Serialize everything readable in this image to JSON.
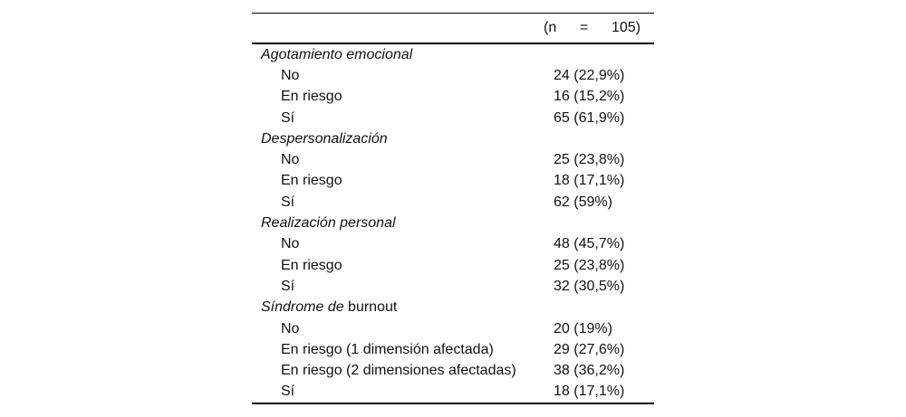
{
  "page": {
    "background_color": "#ffffff",
    "text_color": "#121212",
    "rule_color": "#000000"
  },
  "table": {
    "header": {
      "n_open": "(n",
      "n_equals": "=",
      "n_close": "105)"
    },
    "sections": [
      {
        "title_italic": "Agotamiento emocional",
        "title_regular": "",
        "rows": [
          {
            "label": "No",
            "value": "24 (22,9%)"
          },
          {
            "label": "En riesgo",
            "value": "16 (15,2%)"
          },
          {
            "label": "Sí",
            "value": "65 (61,9%)"
          }
        ]
      },
      {
        "title_italic": "Despersonalización",
        "title_regular": "",
        "rows": [
          {
            "label": "No",
            "value": "25 (23,8%)"
          },
          {
            "label": "En riesgo",
            "value": "18 (17,1%)"
          },
          {
            "label": "Sí",
            "value": "62 (59%)"
          }
        ]
      },
      {
        "title_italic": "Realización personal",
        "title_regular": "",
        "rows": [
          {
            "label": "No",
            "value": "48 (45,7%)"
          },
          {
            "label": "En riesgo",
            "value": "25 (23,8%)"
          },
          {
            "label": "Sí",
            "value": "32 (30,5%)"
          }
        ]
      },
      {
        "title_italic": "Síndrome de",
        "title_regular": " burnout",
        "rows": [
          {
            "label": "No",
            "value": "20 (19%)"
          },
          {
            "label": "En riesgo (1 dimensión afectada)",
            "value": "29 (27,6%)"
          },
          {
            "label": "En riesgo (2 dimensiones afectadas)",
            "value": "38 (36,2%)"
          },
          {
            "label": "Sí",
            "value": "18 (17,1%)"
          }
        ]
      }
    ]
  }
}
